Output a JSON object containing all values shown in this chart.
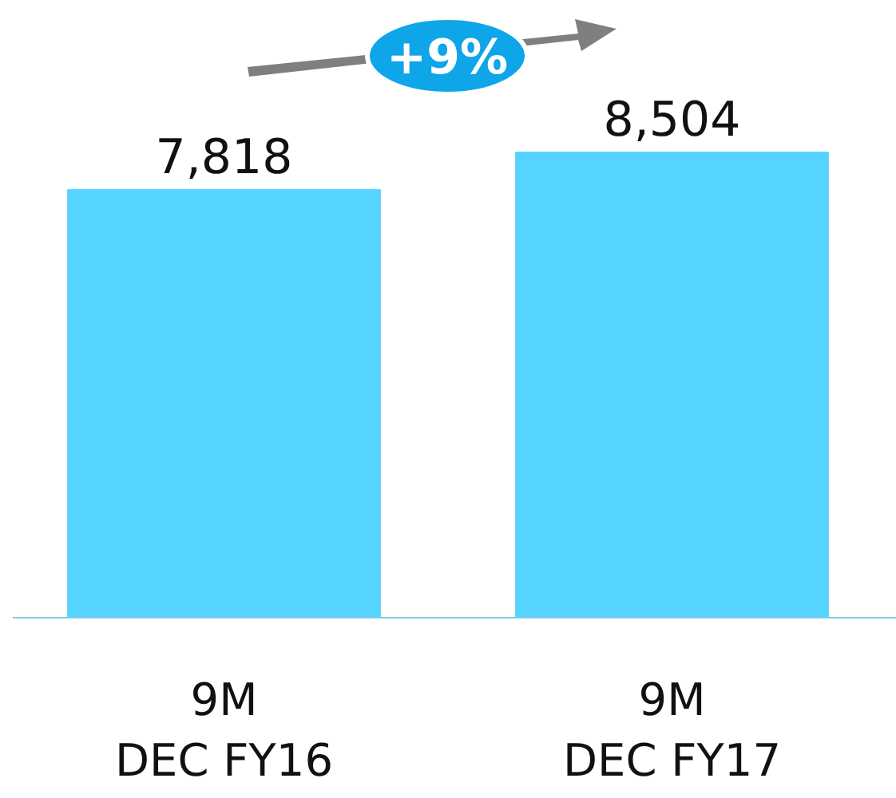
{
  "chart_data": {
    "type": "bar",
    "categories": [
      "9M DEC FY16",
      "9M DEC FY17"
    ],
    "values": [
      7818,
      8504
    ],
    "color": "#55d4ff",
    "data_labels": true,
    "value_labels": [
      "7,818",
      "8,504"
    ],
    "annotations": [
      "+9%"
    ]
  }
}
